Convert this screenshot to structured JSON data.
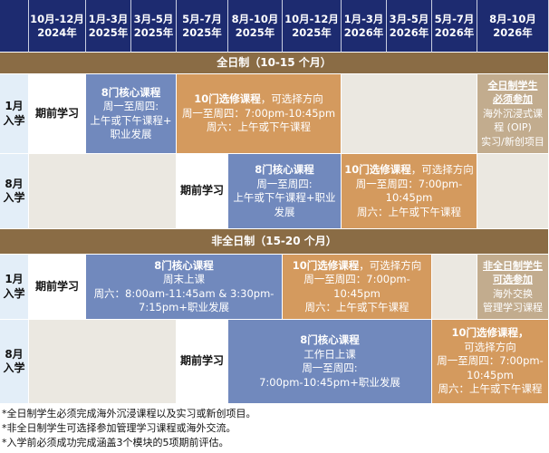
{
  "header": {
    "periods": [
      {
        "months": "10月-12月",
        "year": "2024年"
      },
      {
        "months": "1月-3月",
        "year": "2025年"
      },
      {
        "months": "3月-5月",
        "year": "2025年"
      },
      {
        "months": "5月-7月",
        "year": "2025年"
      },
      {
        "months": "8月-10月",
        "year": "2025年"
      },
      {
        "months": "10月-12月",
        "year": "2025年"
      },
      {
        "months": "1月-3月",
        "year": "2026年"
      },
      {
        "months": "3月-5月",
        "year": "2026年"
      },
      {
        "months": "5月-7月",
        "year": "2026年"
      },
      {
        "months": "8月-10月",
        "year": "2026年"
      }
    ]
  },
  "fulltime": {
    "title": "全日制（10-15 个月）",
    "jan": {
      "label1": "1月",
      "label2": "入学",
      "pre": "期前学习",
      "core": {
        "title": "8门核心课程",
        "l1": "周一至周四:",
        "l2": "上午或下午课程+",
        "l3": "职业发展"
      },
      "elective": {
        "title": "10门选修课程",
        "suffix": "，可选择方向",
        "l1": "周一至周四：7:00pm-10:45pm",
        "l2": "周六：上午或下午课程"
      },
      "extra": {
        "u1": "全日制学生",
        "u2": "必须参加",
        "l1": "海外沉浸式课",
        "l2": "程 (OIP)",
        "l3": "实习/新创项目"
      }
    },
    "aug": {
      "label1": "8月",
      "label2": "入学",
      "pre": "期前学习",
      "core": {
        "title": "8门核心课程",
        "l1": "周一至周四:",
        "l2": "上午或下午课程+职业",
        "l3": "发展"
      },
      "elective": {
        "title": "10门选修课程",
        "suffix": "，可选择方向",
        "l1": "周一至周四：7:00pm-",
        "l2": "10:45pm",
        "l3": "周六：上午或下午课程"
      }
    }
  },
  "parttime": {
    "title": "非全日制（15-20 个月）",
    "jan": {
      "label1": "1月",
      "label2": "入学",
      "pre": "期前学习",
      "core": {
        "title": "8门核心课程",
        "l1": "周末上课",
        "l2": "周六：8:00am-11:45am & 3:30pm-",
        "l3": "7:15pm+职业发展"
      },
      "elective": {
        "title": "10门选修课程",
        "suffix": "，可选择方向",
        "l1": "周一至周四：7:00pm-",
        "l2": "10:45pm",
        "l3": "周六：上午或下午课程"
      },
      "extra": {
        "u1": "非全日制学生",
        "u2": "可选参加",
        "l1": "海外交换",
        "l2": "管理学习课程"
      }
    },
    "aug": {
      "label1": "8月",
      "label2": "入学",
      "pre": "期前学习",
      "core": {
        "title": "8门核心课程",
        "l1": "工作日上课",
        "l2": "周一至周四:",
        "l3": "7:00pm-10:45pm+职业发展"
      },
      "elective": {
        "title": "10门选修课程，",
        "l0": "可选择方向",
        "l1": "周一至周四：7:00pm-",
        "l2": "10:45pm",
        "l3": "周六：上午或下午课程"
      }
    }
  },
  "notes": [
    "*全日制学生必须完成海外沉浸课程以及实习或新创项目。",
    "*非全日制学生可选择参加管理学习课程或海外交流。",
    "*入学前必须成功完成涵盖3个模块的5项期前评估。"
  ],
  "colors": {
    "header": "#1d2b70",
    "band": "#8a6c45",
    "core": "#7189bd",
    "elective": "#d49a5e",
    "extra": "#c2ac8e",
    "empty": "#ebe8e1"
  }
}
